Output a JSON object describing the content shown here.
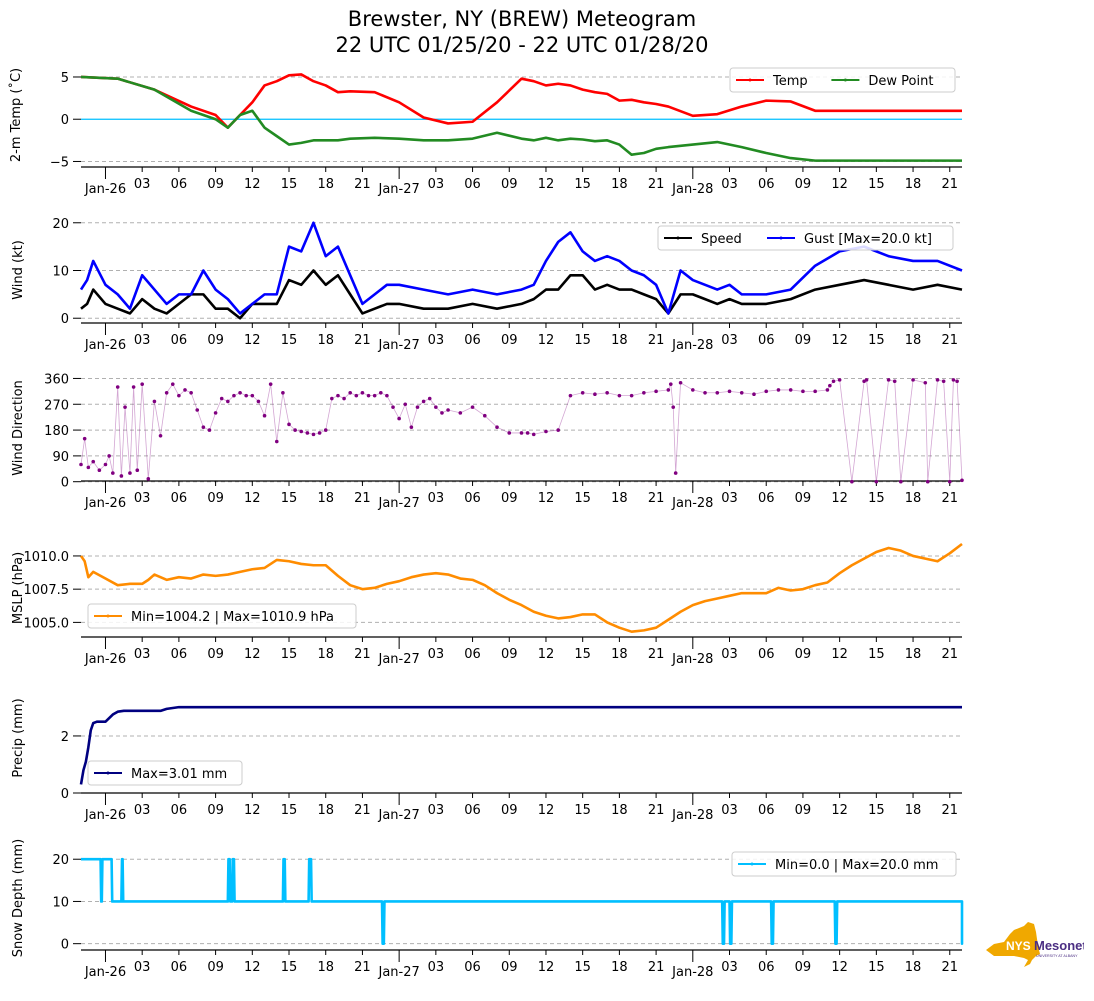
{
  "title": {
    "line1": "Brewster, NY (BREW) Meteogram",
    "line2": "22 UTC 01/25/20 - 22 UTC 01/28/20"
  },
  "logo": {
    "text_main": "NYS",
    "text_brand": "Mesonet",
    "subtext": "UNIVERSITY AT ALBANY",
    "state_color": "#f0a800",
    "brand_color": "#4b2e83"
  },
  "chart_data": [
    {
      "id": "temp",
      "type": "line",
      "ylabel": "2-m Temp ($^\\circ$C)",
      "ylabel_display": "2-m Temp (˚C)",
      "ylim": [
        -5.3,
        6.3
      ],
      "yticks": [
        -5,
        0,
        5
      ],
      "ytick_labels": [
        "−5",
        "0",
        "5"
      ],
      "grid_y": [
        -5,
        5
      ],
      "reference_line": {
        "y": 0,
        "color": "#00bfff"
      },
      "x_hours": [
        0,
        3,
        6,
        9,
        11,
        12,
        13,
        14,
        15,
        16,
        17,
        18,
        19,
        20,
        21,
        22,
        24,
        26,
        28,
        30,
        32,
        34,
        36,
        37,
        38,
        39,
        40,
        41,
        42,
        43,
        44,
        45,
        46,
        47,
        48,
        50,
        52,
        54,
        56,
        58,
        60,
        62,
        64,
        66,
        68,
        70,
        72
      ],
      "series": [
        {
          "name": "Temp",
          "color": "#ff0000",
          "values": [
            5.0,
            4.8,
            3.5,
            1.5,
            0.5,
            -1.0,
            0.5,
            2.0,
            4.0,
            4.5,
            5.2,
            5.3,
            4.5,
            4.0,
            3.2,
            3.3,
            3.2,
            2.0,
            0.2,
            -0.5,
            -0.3,
            2.0,
            4.8,
            4.5,
            4.0,
            4.2,
            4.0,
            3.5,
            3.2,
            3.0,
            2.2,
            2.3,
            2.0,
            1.8,
            1.5,
            0.4,
            0.6,
            1.5,
            2.2,
            2.1,
            1.0,
            1.0,
            1.0,
            1.0,
            1.0,
            1.0,
            1.0
          ]
        },
        {
          "name": "Dew Point",
          "color": "#228b22",
          "values": [
            5.0,
            4.8,
            3.5,
            1.0,
            0.0,
            -1.0,
            0.5,
            1.0,
            -1.0,
            -2.0,
            -3.0,
            -2.8,
            -2.5,
            -2.5,
            -2.5,
            -2.3,
            -2.2,
            -2.3,
            -2.5,
            -2.5,
            -2.3,
            -1.6,
            -2.3,
            -2.5,
            -2.2,
            -2.5,
            -2.3,
            -2.4,
            -2.6,
            -2.5,
            -3.0,
            -4.2,
            -4.0,
            -3.5,
            -3.3,
            -3.0,
            -2.7,
            -3.3,
            -4.0,
            -4.6,
            -4.9,
            -4.9,
            -4.9,
            -4.9,
            -4.9,
            -4.9,
            -4.9
          ]
        }
      ],
      "legend": {
        "location": "upper right",
        "ncol": 2,
        "labels": [
          "Temp",
          "Dew Point"
        ]
      }
    },
    {
      "id": "wind",
      "type": "line",
      "ylabel": "Wind (kt)",
      "ylim": [
        -1,
        21
      ],
      "yticks": [
        0,
        10,
        20
      ],
      "ytick_labels": [
        "0",
        "10",
        "20"
      ],
      "grid_y": [
        0,
        10,
        20
      ],
      "x_hours": [
        0,
        0.5,
        1,
        2,
        3,
        4,
        5,
        6,
        7,
        8,
        9,
        10,
        11,
        12,
        13,
        14,
        15,
        16,
        17,
        18,
        19,
        20,
        21,
        22,
        23,
        24,
        25,
        26,
        28,
        30,
        32,
        34,
        36,
        37,
        38,
        39,
        40,
        41,
        42,
        43,
        44,
        45,
        46,
        47,
        48,
        49,
        50,
        51,
        52,
        53,
        54,
        56,
        58,
        60,
        62,
        64,
        66,
        68,
        70,
        72
      ],
      "series": [
        {
          "name": "Speed",
          "color": "#000000",
          "values": [
            2,
            3,
            6,
            3,
            2,
            1,
            4,
            2,
            1,
            3,
            5,
            5,
            2,
            2,
            0,
            3,
            3,
            3,
            8,
            7,
            10,
            7,
            9,
            5,
            1,
            2,
            3,
            3,
            2,
            2,
            3,
            2,
            3,
            4,
            6,
            6,
            9,
            9,
            6,
            7,
            6,
            6,
            5,
            4,
            1,
            5,
            5,
            4,
            3,
            4,
            3,
            3,
            4,
            6,
            7,
            8,
            7,
            6,
            7,
            6
          ]
        },
        {
          "name": "Gust",
          "color": "#0000ff",
          "values": [
            6,
            8,
            12,
            7,
            5,
            2,
            9,
            6,
            3,
            5,
            5,
            10,
            6,
            4,
            1,
            3,
            5,
            5,
            15,
            14,
            20,
            13,
            15,
            9,
            3,
            5,
            7,
            7,
            6,
            5,
            6,
            5,
            6,
            7,
            12,
            16,
            18,
            14,
            12,
            13,
            12,
            10,
            9,
            7,
            1,
            10,
            8,
            7,
            6,
            7,
            5,
            5,
            6,
            11,
            14,
            15,
            13,
            12,
            12,
            10
          ]
        }
      ],
      "legend": {
        "location": "upper right",
        "ncol": 2,
        "labels": [
          "Speed",
          "Gust [Max=20.0 kt]"
        ]
      },
      "max_gust_kt": 20.0
    },
    {
      "id": "wind_dir",
      "type": "scatter",
      "ylabel": "Wind Direction",
      "ylim": [
        -8,
        372
      ],
      "yticks": [
        0,
        90,
        180,
        270,
        360
      ],
      "ytick_labels": [
        "0",
        "90",
        "180",
        "270",
        "360"
      ],
      "grid_y": [
        0,
        90,
        180,
        270,
        360
      ],
      "color": "#800080",
      "x_hours": [
        0,
        0.3,
        0.6,
        1,
        1.5,
        2,
        2.3,
        2.6,
        3,
        3.3,
        3.6,
        4,
        4.3,
        4.6,
        5,
        5.5,
        6,
        6.5,
        7,
        7.5,
        8,
        8.5,
        9,
        9.5,
        10,
        10.5,
        11,
        11.5,
        12,
        12.5,
        13,
        13.5,
        14,
        14.5,
        15,
        15.5,
        16,
        16.5,
        17,
        17.5,
        18,
        18.5,
        19,
        19.5,
        20,
        20.5,
        21,
        21.5,
        22,
        22.5,
        23,
        23.5,
        24,
        24.5,
        25,
        25.5,
        26,
        26.5,
        27,
        27.5,
        28,
        28.5,
        29,
        29.5,
        30,
        31,
        32,
        33,
        34,
        35,
        36,
        36.5,
        37,
        38,
        39,
        40,
        41,
        42,
        43,
        44,
        45,
        46,
        47,
        48,
        48.2,
        48.4,
        48.6,
        49,
        50,
        51,
        52,
        53,
        54,
        55,
        56,
        57,
        58,
        59,
        60,
        61,
        61.2,
        61.5,
        62,
        63,
        64,
        64.2,
        65,
        66,
        66.5,
        67,
        68,
        69,
        69.2,
        70,
        70.5,
        71,
        71.3,
        71.6,
        72
      ],
      "values": [
        60,
        150,
        50,
        70,
        40,
        60,
        90,
        30,
        330,
        20,
        260,
        30,
        330,
        40,
        340,
        10,
        280,
        160,
        310,
        340,
        300,
        320,
        310,
        250,
        190,
        180,
        240,
        290,
        280,
        300,
        310,
        300,
        300,
        280,
        230,
        340,
        140,
        310,
        200,
        180,
        175,
        170,
        165,
        170,
        180,
        290,
        300,
        290,
        310,
        300,
        310,
        300,
        300,
        310,
        300,
        260,
        220,
        270,
        190,
        260,
        280,
        290,
        260,
        240,
        250,
        240,
        260,
        230,
        190,
        170,
        170,
        170,
        165,
        175,
        180,
        300,
        310,
        305,
        310,
        300,
        300,
        310,
        315,
        320,
        340,
        260,
        30,
        345,
        320,
        310,
        310,
        315,
        310,
        305,
        315,
        320,
        320,
        315,
        315,
        320,
        335,
        350,
        355,
        0,
        350,
        355,
        0,
        355,
        350,
        0,
        355,
        345,
        0,
        355,
        350,
        0,
        355,
        350,
        5,
        10,
        5
      ]
    },
    {
      "id": "mslp",
      "type": "line",
      "ylabel": "MSLP (hPa)",
      "ylim": [
        1003.9,
        1011.2
      ],
      "yticks": [
        1005.0,
        1007.5,
        1010.0
      ],
      "ytick_labels": [
        "1005.0",
        "1007.5",
        "1010.0"
      ],
      "grid_y": [
        1005.0,
        1007.5,
        1010.0
      ],
      "color": "#ff8c00",
      "x_hours": [
        0,
        0.3,
        0.6,
        1,
        2,
        3,
        4,
        5,
        5.5,
        6,
        7,
        8,
        9,
        10,
        11,
        12,
        13,
        14,
        15,
        16,
        17,
        18,
        19,
        20,
        21,
        22,
        23,
        24,
        25,
        26,
        27,
        28,
        29,
        30,
        31,
        32,
        33,
        34,
        35,
        36,
        37,
        38,
        39,
        40,
        41,
        42,
        43,
        44,
        45,
        46,
        47,
        48,
        49,
        50,
        51,
        52,
        53,
        54,
        55,
        56,
        57,
        58,
        59,
        60,
        61,
        62,
        63,
        64,
        65,
        66,
        67,
        68,
        69,
        70,
        71,
        72
      ],
      "values": [
        1010.0,
        1009.6,
        1008.4,
        1008.8,
        1008.3,
        1007.8,
        1007.9,
        1007.9,
        1008.2,
        1008.6,
        1008.2,
        1008.4,
        1008.3,
        1008.6,
        1008.5,
        1008.6,
        1008.8,
        1009.0,
        1009.1,
        1009.7,
        1009.6,
        1009.4,
        1009.3,
        1009.3,
        1008.5,
        1007.8,
        1007.5,
        1007.6,
        1007.9,
        1008.1,
        1008.4,
        1008.6,
        1008.7,
        1008.6,
        1008.3,
        1008.2,
        1007.8,
        1007.2,
        1006.7,
        1006.3,
        1005.8,
        1005.5,
        1005.3,
        1005.4,
        1005.6,
        1005.6,
        1005.0,
        1004.6,
        1004.3,
        1004.4,
        1004.6,
        1005.2,
        1005.8,
        1006.3,
        1006.6,
        1006.8,
        1007.0,
        1007.2,
        1007.2,
        1007.2,
        1007.6,
        1007.4,
        1007.5,
        1007.8,
        1008.0,
        1008.7,
        1009.3,
        1009.8,
        1010.3,
        1010.6,
        1010.4,
        1010.0,
        1009.8,
        1009.6,
        1010.2,
        1010.9
      ],
      "legend": {
        "location": "lower left",
        "labels": [
          "Min=1004.2 | Max=1010.9 hPa"
        ]
      },
      "min_hpa": 1004.2,
      "max_hpa": 1010.9
    },
    {
      "id": "precip",
      "type": "line",
      "ylabel": "Precip (mm)",
      "ylim": [
        0,
        3.05
      ],
      "yticks": [
        0,
        2
      ],
      "ytick_labels": [
        "0",
        "2"
      ],
      "grid_y": [
        2
      ],
      "color": "#000080",
      "x_hours": [
        0,
        0.2,
        0.4,
        0.6,
        0.8,
        1.0,
        1.3,
        2.0,
        2.6,
        3.0,
        3.5,
        5.0,
        6.5,
        7.0,
        8.0,
        72
      ],
      "values": [
        0.3,
        0.8,
        1.1,
        1.6,
        2.2,
        2.45,
        2.5,
        2.5,
        2.75,
        2.85,
        2.88,
        2.88,
        2.88,
        2.95,
        3.01,
        3.01
      ],
      "legend": {
        "location": "lower left",
        "labels": [
          "Max=3.01 mm"
        ]
      },
      "max_mm": 3.01
    },
    {
      "id": "snow",
      "type": "line",
      "ylabel": "Snow Depth (mm)",
      "ylim": [
        -1.5,
        21
      ],
      "yticks": [
        0,
        10,
        20
      ],
      "ytick_labels": [
        "0",
        "10",
        "20"
      ],
      "grid_y": [
        0,
        10,
        20
      ],
      "color": "#00bfff",
      "x_hours": [
        0,
        1.6,
        1.65,
        1.7,
        1.75,
        2.5,
        2.55,
        3.3,
        3.35,
        3.4,
        3.45,
        12.0,
        12.05,
        12.15,
        12.2,
        12.35,
        12.4,
        12.5,
        12.55,
        16.5,
        16.55,
        16.65,
        16.7,
        18.6,
        18.65,
        18.8,
        18.85,
        24.6,
        24.65,
        24.75,
        24.8,
        52.4,
        52.45,
        52.55,
        52.6,
        53.0,
        53.05,
        53.15,
        53.2,
        56.4,
        56.45,
        56.55,
        56.6,
        61.6,
        61.65,
        61.75,
        61.8,
        72.0,
        72.05,
        72.1
      ],
      "values": [
        20,
        20,
        10,
        10,
        20,
        20,
        10,
        10,
        20,
        20,
        10,
        10,
        20,
        20,
        10,
        10,
        20,
        20,
        10,
        10,
        20,
        20,
        10,
        10,
        20,
        20,
        10,
        10,
        0,
        0,
        10,
        10,
        0,
        0,
        10,
        10,
        0,
        0,
        10,
        10,
        0,
        0,
        10,
        10,
        0,
        0,
        10,
        10,
        0,
        10
      ],
      "legend": {
        "location": "upper right",
        "labels": [
          "Min=0.0 | Max=20.0 mm"
        ]
      },
      "min_mm": 0.0,
      "max_mm": 20.0
    }
  ],
  "x_axis": {
    "start": "22 UTC 01/25/20",
    "end": "22 UTC 01/28/20",
    "hours_span": 72,
    "major_ticks": [
      {
        "hour": 2,
        "label": "Jan-26"
      },
      {
        "hour": 26,
        "label": "Jan-27"
      },
      {
        "hour": 50,
        "label": "Jan-28"
      }
    ],
    "minor_ticks": [
      {
        "hour": 5,
        "label": "03"
      },
      {
        "hour": 8,
        "label": "06"
      },
      {
        "hour": 11,
        "label": "09"
      },
      {
        "hour": 14,
        "label": "12"
      },
      {
        "hour": 17,
        "label": "15"
      },
      {
        "hour": 20,
        "label": "18"
      },
      {
        "hour": 23,
        "label": "21"
      },
      {
        "hour": 29,
        "label": "03"
      },
      {
        "hour": 32,
        "label": "06"
      },
      {
        "hour": 35,
        "label": "09"
      },
      {
        "hour": 38,
        "label": "12"
      },
      {
        "hour": 41,
        "label": "15"
      },
      {
        "hour": 44,
        "label": "18"
      },
      {
        "hour": 47,
        "label": "21"
      },
      {
        "hour": 53,
        "label": "03"
      },
      {
        "hour": 56,
        "label": "06"
      },
      {
        "hour": 59,
        "label": "09"
      },
      {
        "hour": 62,
        "label": "12"
      },
      {
        "hour": 65,
        "label": "15"
      },
      {
        "hour": 68,
        "label": "18"
      },
      {
        "hour": 71,
        "label": "21"
      }
    ]
  }
}
